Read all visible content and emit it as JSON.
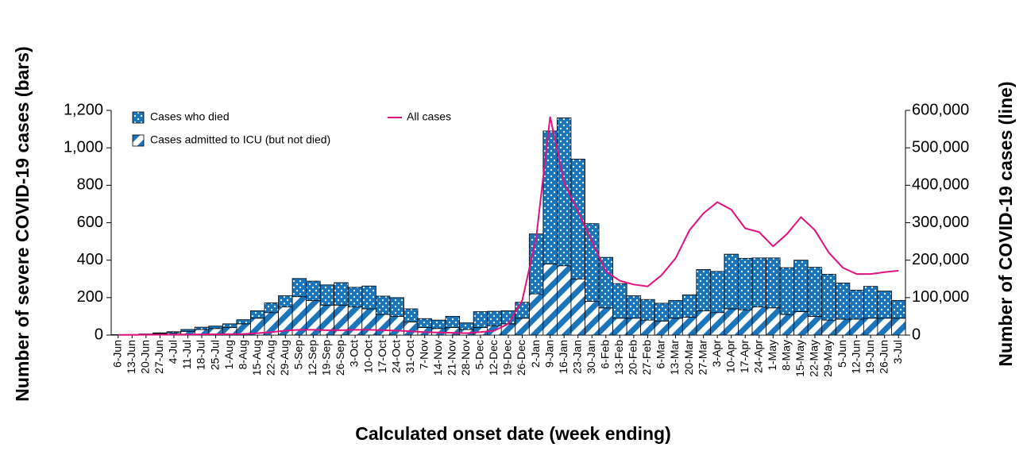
{
  "chart_data": {
    "type": "bar_line",
    "x_label": "Calculated onset date (week ending)",
    "y_label": "Number of severe COVID-19 cases (bars)",
    "y2_label": "Number of COVID-19 cases (line)",
    "categories": [
      "6-Jun",
      "13-Jun",
      "20-Jun",
      "27-Jun",
      "4-Jul",
      "11-Jul",
      "18-Jul",
      "25-Jul",
      "1-Aug",
      "8-Aug",
      "15-Aug",
      "22-Aug",
      "29-Aug",
      "5-Sep",
      "12-Sep",
      "19-Sep",
      "26-Sep",
      "3-Oct",
      "10-Oct",
      "17-Oct",
      "24-Oct",
      "31-Oct",
      "7-Nov",
      "14-Nov",
      "21-Nov",
      "28-Nov",
      "5-Dec",
      "12-Dec",
      "19-Dec",
      "26-Dec",
      "2-Jan",
      "9-Jan",
      "16-Jan",
      "23-Jan",
      "30-Jan",
      "6-Feb",
      "13-Feb",
      "20-Feb",
      "27-Feb",
      "6-Mar",
      "13-Mar",
      "20-Mar",
      "27-Mar",
      "3-Apr",
      "10-Apr",
      "17-Apr",
      "24-Apr",
      "1-May",
      "8-May",
      "15-May",
      "22-May",
      "29-May",
      "5-Jun",
      "12-Jun",
      "19-Jun",
      "26-Jun",
      "3-Jul"
    ],
    "series": [
      {
        "name": "Cases admitted to ICU (but not died)",
        "type": "bar",
        "pattern": "stripes",
        "color": "#1b75bb",
        "values": [
          1,
          2,
          4,
          8,
          12,
          20,
          30,
          35,
          40,
          60,
          90,
          120,
          150,
          205,
          185,
          160,
          160,
          150,
          140,
          110,
          100,
          70,
          40,
          35,
          40,
          30,
          40,
          50,
          60,
          90,
          220,
          380,
          370,
          300,
          180,
          145,
          90,
          90,
          80,
          75,
          90,
          95,
          130,
          120,
          140,
          135,
          150,
          145,
          110,
          125,
          100,
          80,
          85,
          85,
          90,
          90,
          90
        ]
      },
      {
        "name": "Cases who died",
        "type": "bar",
        "pattern": "dots",
        "color": "#1b75bb",
        "values": [
          1,
          1,
          2,
          4,
          6,
          10,
          12,
          13,
          20,
          22,
          40,
          52,
          60,
          97,
          103,
          108,
          120,
          105,
          122,
          98,
          100,
          70,
          48,
          45,
          60,
          35,
          85,
          77,
          70,
          85,
          320,
          710,
          790,
          640,
          415,
          270,
          185,
          120,
          110,
          95,
          95,
          120,
          220,
          220,
          292,
          275,
          262,
          267,
          250,
          275,
          262,
          245,
          193,
          155,
          170,
          145,
          95
        ]
      },
      {
        "name": "All cases",
        "type": "line",
        "axis": "y2",
        "color": "#e0117f",
        "values": [
          500,
          600,
          800,
          1000,
          1200,
          1500,
          1800,
          2000,
          2500,
          3000,
          5000,
          8000,
          12000,
          14000,
          14000,
          13000,
          13000,
          14000,
          14000,
          13000,
          12000,
          10000,
          8000,
          7000,
          6000,
          5000,
          8000,
          12000,
          30000,
          93000,
          260000,
          583000,
          407000,
          330000,
          250000,
          170000,
          145000,
          135000,
          130000,
          160000,
          205000,
          280000,
          325000,
          355000,
          335000,
          285000,
          275000,
          237000,
          270000,
          315000,
          280000,
          220000,
          180000,
          163000,
          163000,
          168000,
          172000
        ]
      }
    ],
    "ylim": [
      0,
      1200
    ],
    "yticks": [
      0,
      200,
      400,
      600,
      800,
      {
        "value": 1000,
        "label": "1,000"
      },
      {
        "value": 1200,
        "label": "1,200"
      }
    ],
    "y2lim": [
      0,
      600000
    ],
    "y2ticks": [
      0,
      {
        "value": 100000,
        "label": "100,000"
      },
      {
        "value": 200000,
        "label": "200,000"
      },
      {
        "value": 300000,
        "label": "300,000"
      },
      {
        "value": 400000,
        "label": "400,000"
      },
      {
        "value": 500000,
        "label": "500,000"
      },
      {
        "value": 600000,
        "label": "600,000"
      }
    ]
  }
}
